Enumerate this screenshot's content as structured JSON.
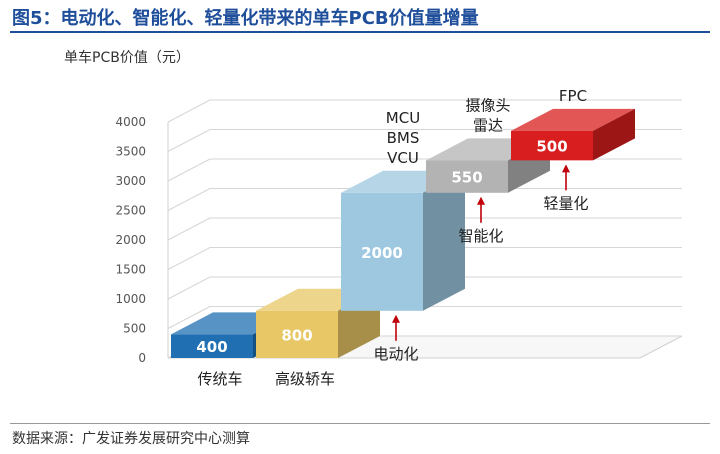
{
  "title": "图5：电动化、智能化、轻量化带来的单车PCB价值量增量",
  "source": "数据来源：广发证券发展研究中心测算",
  "chart_data": {
    "type": "bar",
    "ylabel": "单车PCB价值（元）",
    "ylim": [
      0,
      4000
    ],
    "yticks": [
      0,
      500,
      1000,
      1500,
      2000,
      2500,
      3000,
      3500,
      4000
    ],
    "grid": true,
    "legend": "none",
    "series": [
      {
        "values": [
          400,
          800,
          2000,
          550,
          500
        ],
        "bases": [
          0,
          0,
          800,
          2800,
          3350
        ],
        "colors": [
          "#1f6fb2",
          "#e8c766",
          "#9dc8e0",
          "#b3b3b3",
          "#d81e1e"
        ],
        "labels": [
          "400",
          "800",
          "2000",
          "550",
          "500"
        ]
      }
    ],
    "categories": [
      "传统车",
      "高级轿车",
      "",
      "",
      ""
    ],
    "annotations": [
      {
        "bar": 2,
        "lines": [
          "MCU",
          "BMS",
          "VCU"
        ],
        "position": "above"
      },
      {
        "bar": 3,
        "lines": [
          "摄像头",
          "雷达"
        ],
        "position": "above"
      },
      {
        "bar": 4,
        "lines": [
          "FPC"
        ],
        "position": "above"
      },
      {
        "bar": 2,
        "arrow_label": "电动化"
      },
      {
        "bar": 3,
        "arrow_label": "智能化"
      },
      {
        "bar": 4,
        "arrow_label": "轻量化"
      }
    ]
  }
}
